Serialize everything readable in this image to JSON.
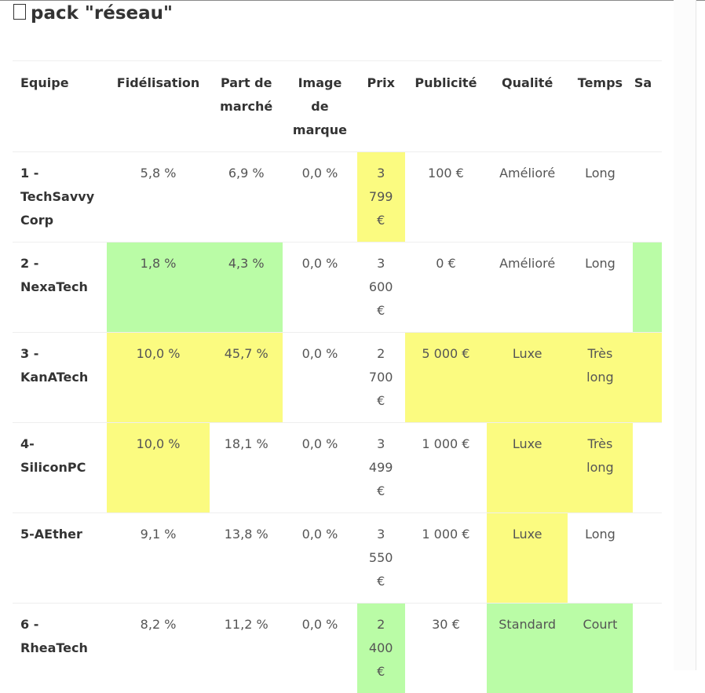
{
  "page": {
    "title": "pack \"réseau\""
  },
  "table": {
    "columns": [
      "Equipe",
      "Fidélisation",
      "Part de marché",
      "Image de marque",
      "Prix",
      "Publicité",
      "Qualité",
      "Temps",
      "Sa"
    ],
    "rows": [
      {
        "team": "1 - TechSavvy Corp",
        "fidelisation": "5,8 %",
        "part_de_marche": "6,9 %",
        "image_de_marque": "0,0 %",
        "prix": "3 799 €",
        "publicite": "100 €",
        "qualite": "Amélioré",
        "temps": "Long",
        "sa": ""
      },
      {
        "team": "2 - NexaTech",
        "fidelisation": "1,8 %",
        "part_de_marche": "4,3 %",
        "image_de_marque": "0,0 %",
        "prix": "3 600 €",
        "publicite": "0 €",
        "qualite": "Amélioré",
        "temps": "Long",
        "sa": ""
      },
      {
        "team": "3 - KanATech",
        "fidelisation": "10,0 %",
        "part_de_marche": "45,7 %",
        "image_de_marque": "0,0 %",
        "prix": "2 700 €",
        "publicite": "5 000 €",
        "qualite": "Luxe",
        "temps": "Très long",
        "sa": ""
      },
      {
        "team": "4- SiliconPC",
        "fidelisation": "10,0 %",
        "part_de_marche": "18,1 %",
        "image_de_marque": "0,0 %",
        "prix": "3 499 €",
        "publicite": "1 000 €",
        "qualite": "Luxe",
        "temps": "Très long",
        "sa": ""
      },
      {
        "team": "5-AEther",
        "fidelisation": "9,1 %",
        "part_de_marche": "13,8 %",
        "image_de_marque": "0,0 %",
        "prix": "3 550 €",
        "publicite": "1 000 €",
        "qualite": "Luxe",
        "temps": "Long",
        "sa": ""
      },
      {
        "team": "6 - RheaTech",
        "fidelisation": "8,2 %",
        "part_de_marche": "11,2 %",
        "image_de_marque": "0,0 %",
        "prix": "2 400 €",
        "publicite": "30 €",
        "qualite": "Standard",
        "temps": "Court",
        "sa": ""
      }
    ]
  },
  "highlight_colors": {
    "yellow": "#fbfb80",
    "green": "#bafca6"
  }
}
